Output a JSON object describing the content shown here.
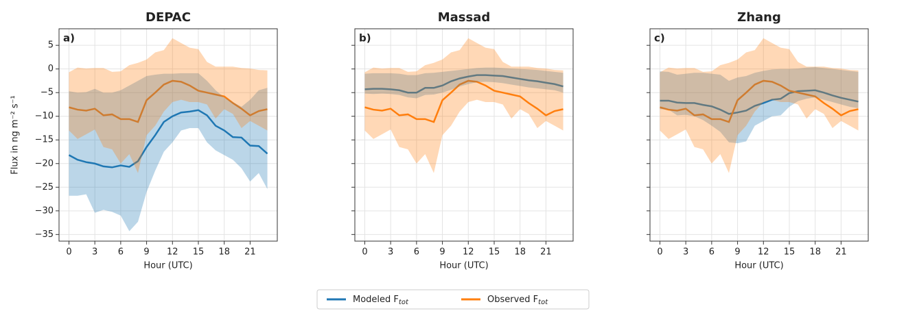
{
  "chart_data": [
    {
      "type": "line",
      "title": "DEPAC",
      "panel_label": "a)",
      "xlabel": "Hour (UTC)",
      "ylabel": "Flux in ng m⁻² s⁻¹",
      "x": [
        0,
        1,
        2,
        3,
        4,
        5,
        6,
        7,
        8,
        9,
        10,
        11,
        12,
        13,
        14,
        15,
        16,
        17,
        18,
        19,
        20,
        21,
        22,
        23
      ],
      "xlim": [
        -1.15,
        24.15
      ],
      "ylim": [
        -36.4,
        8.5
      ],
      "xticks": [
        0,
        3,
        6,
        9,
        12,
        15,
        18,
        21
      ],
      "yticks": [
        {
          "value": -35,
          "label": "−35"
        },
        {
          "value": -30,
          "label": "−30"
        },
        {
          "value": -25,
          "label": "−25"
        },
        {
          "value": -20,
          "label": "−20"
        },
        {
          "value": -15,
          "label": "−15"
        },
        {
          "value": -10,
          "label": "−10"
        },
        {
          "value": -5,
          "label": "−5"
        },
        0,
        5
      ],
      "show_ytick_labels": true,
      "grid": true,
      "series": [
        {
          "color": "#1f77b4",
          "values": [
            -18.2,
            -19.2,
            -19.7,
            -20,
            -20.6,
            -20.8,
            -20.4,
            -20.7,
            -19.5,
            -16.5,
            -14,
            -11.2,
            -10,
            -9.2,
            -9,
            -8.7,
            -9.8,
            -12,
            -13,
            -14.4,
            -14.5,
            -16.2,
            -16.3,
            -17.9
          ],
          "lower": [
            -26.8,
            -26.8,
            -26.5,
            -30.4,
            -29.8,
            -30.2,
            -31,
            -34.3,
            -32.3,
            -26,
            -21.5,
            -17.5,
            -15.5,
            -13,
            -12.5,
            -12.5,
            -15.5,
            -17.2,
            -18.2,
            -19.2,
            -21,
            -23.8,
            -22,
            -25.4
          ],
          "upper": [
            -4.7,
            -5,
            -4.9,
            -4.2,
            -5,
            -5,
            -4.5,
            -3.5,
            -2.5,
            -1.5,
            -1.2,
            -1,
            -1,
            -0.9,
            -0.9,
            -0.9,
            -2.5,
            -4.5,
            -6,
            -7,
            -8,
            -6.5,
            -4.5,
            -4
          ]
        },
        {
          "color": "#ff7f0e",
          "values": [
            -8.1,
            -8.6,
            -8.8,
            -8.4,
            -9.8,
            -9.6,
            -10.6,
            -10.6,
            -11.2,
            -6.6,
            -5,
            -3.3,
            -2.5,
            -2.7,
            -3.5,
            -4.6,
            -5,
            -5.4,
            -5.8,
            -7.2,
            -8.4,
            -9.8,
            -8.9,
            -8.5
          ],
          "lower": [
            -13,
            -14.8,
            -13.8,
            -12.8,
            -16.5,
            -17,
            -20,
            -18,
            -22,
            -14,
            -12,
            -9,
            -7,
            -6.5,
            -7,
            -7,
            -7.5,
            -10.5,
            -8.5,
            -9.5,
            -12.5,
            -11,
            -12,
            -13
          ],
          "upper": [
            -0.7,
            0.3,
            0.1,
            0.2,
            0.2,
            -0.6,
            -0.5,
            0.8,
            1.3,
            2,
            3.5,
            4,
            6.5,
            5.5,
            4.5,
            4.2,
            1.5,
            0.5,
            0.5,
            0.5,
            0.2,
            0.1,
            -0.2,
            -0.3
          ]
        }
      ]
    },
    {
      "type": "line",
      "title": "Massad",
      "panel_label": "b)",
      "xlabel": "Hour (UTC)",
      "x": [
        0,
        1,
        2,
        3,
        4,
        5,
        6,
        7,
        8,
        9,
        10,
        11,
        12,
        13,
        14,
        15,
        16,
        17,
        18,
        19,
        20,
        21,
        22,
        23
      ],
      "xlim": [
        -1.15,
        24.15
      ],
      "ylim": [
        -36.4,
        8.5
      ],
      "xticks": [
        0,
        3,
        6,
        9,
        12,
        15,
        18,
        21
      ],
      "yticks": [
        -35,
        -30,
        -25,
        -20,
        -15,
        -10,
        -5,
        0,
        5
      ],
      "show_ytick_labels": false,
      "grid": true,
      "series": [
        {
          "color": "#1f77b4",
          "values": [
            -4.3,
            -4.2,
            -4.2,
            -4.3,
            -4.5,
            -5,
            -5,
            -4,
            -4,
            -3.5,
            -2.6,
            -2,
            -1.6,
            -1.3,
            -1.3,
            -1.4,
            -1.5,
            -1.8,
            -2.1,
            -2.4,
            -2.6,
            -2.9,
            -3.2,
            -3.7
          ],
          "lower": [
            -5.2,
            -5.3,
            -5.2,
            -5.3,
            -5.5,
            -6,
            -6.2,
            -5.5,
            -5.4,
            -5,
            -4.4,
            -3.7,
            -3.2,
            -2.8,
            -2.7,
            -2.8,
            -3,
            -3.3,
            -3.6,
            -3.9,
            -4.1,
            -4.3,
            -4.5,
            -5
          ],
          "upper": [
            -1,
            -0.9,
            -0.9,
            -0.9,
            -1,
            -1.3,
            -1.3,
            -0.9,
            -0.8,
            -0.6,
            -0.4,
            -0.2,
            0,
            0.2,
            0.3,
            0.3,
            0.2,
            0.1,
            0,
            -0.1,
            -0.2,
            -0.4,
            -0.6,
            -0.8
          ]
        },
        {
          "color": "#ff7f0e",
          "values": [
            -8.1,
            -8.6,
            -8.8,
            -8.4,
            -9.8,
            -9.6,
            -10.6,
            -10.6,
            -11.2,
            -6.6,
            -5,
            -3.3,
            -2.5,
            -2.7,
            -3.5,
            -4.6,
            -5,
            -5.4,
            -5.8,
            -7.2,
            -8.4,
            -9.8,
            -8.9,
            -8.5
          ],
          "lower": [
            -13,
            -14.8,
            -13.8,
            -12.8,
            -16.5,
            -17,
            -20,
            -18,
            -22,
            -14,
            -12,
            -9,
            -7,
            -6.5,
            -7,
            -7,
            -7.5,
            -10.5,
            -8.5,
            -9.5,
            -12.5,
            -11,
            -12,
            -13
          ],
          "upper": [
            -0.7,
            0.3,
            0.1,
            0.2,
            0.2,
            -0.6,
            -0.5,
            0.8,
            1.3,
            2,
            3.5,
            4,
            6.5,
            5.5,
            4.5,
            4.2,
            1.5,
            0.5,
            0.5,
            0.5,
            0.2,
            0.1,
            -0.2,
            -0.3
          ]
        }
      ]
    },
    {
      "type": "line",
      "title": "Zhang",
      "panel_label": "c)",
      "xlabel": "Hour (UTC)",
      "x": [
        0,
        1,
        2,
        3,
        4,
        5,
        6,
        7,
        8,
        9,
        10,
        11,
        12,
        13,
        14,
        15,
        16,
        17,
        18,
        19,
        20,
        21,
        22,
        23
      ],
      "xlim": [
        -1.15,
        24.15
      ],
      "ylim": [
        -36.4,
        8.5
      ],
      "xticks": [
        0,
        3,
        6,
        9,
        12,
        15,
        18,
        21
      ],
      "yticks": [
        -35,
        -30,
        -25,
        -20,
        -15,
        -10,
        -5,
        0,
        5
      ],
      "show_ytick_labels": false,
      "grid": true,
      "series": [
        {
          "color": "#1f77b4",
          "values": [
            -6.7,
            -6.7,
            -7.1,
            -7.2,
            -7.2,
            -7.6,
            -7.9,
            -8.6,
            -9.5,
            -9.2,
            -8.8,
            -7.8,
            -7.2,
            -6.5,
            -6.3,
            -5.1,
            -4.7,
            -4.6,
            -4.5,
            -5,
            -5.6,
            -6.1,
            -6.5,
            -6.9
          ],
          "lower": [
            -8.5,
            -8.6,
            -9.8,
            -9.7,
            -10,
            -10.8,
            -12,
            -13.3,
            -15.5,
            -15.7,
            -15.3,
            -12,
            -11,
            -10,
            -9.8,
            -8,
            -6.8,
            -6.3,
            -6,
            -6.5,
            -7,
            -7.5,
            -8,
            -8.3
          ],
          "upper": [
            -0.5,
            -0.6,
            -1.2,
            -1,
            -0.8,
            -0.8,
            -1,
            -1.2,
            -2.5,
            -1.8,
            -1.5,
            -0.8,
            -0.4,
            -0.1,
            0,
            0,
            0.1,
            0.3,
            0.4,
            0.2,
            0,
            -0.2,
            -0.4,
            -0.6
          ]
        },
        {
          "color": "#ff7f0e",
          "values": [
            -8.1,
            -8.6,
            -8.8,
            -8.4,
            -9.8,
            -9.6,
            -10.6,
            -10.6,
            -11.2,
            -6.6,
            -5,
            -3.3,
            -2.5,
            -2.7,
            -3.5,
            -4.6,
            -5,
            -5.4,
            -5.8,
            -7.2,
            -8.4,
            -9.8,
            -8.9,
            -8.5
          ],
          "lower": [
            -13,
            -14.8,
            -13.8,
            -12.8,
            -16.5,
            -17,
            -20,
            -18,
            -22,
            -14,
            -12,
            -9,
            -7,
            -6.5,
            -7,
            -7,
            -7.5,
            -10.5,
            -8.5,
            -9.5,
            -12.5,
            -11,
            -12,
            -13
          ],
          "upper": [
            -0.7,
            0.3,
            0.1,
            0.2,
            0.2,
            -0.6,
            -0.5,
            0.8,
            1.3,
            2,
            3.5,
            4,
            6.5,
            5.5,
            4.5,
            4.2,
            1.5,
            0.5,
            0.5,
            0.5,
            0.2,
            0.1,
            -0.2,
            -0.3
          ]
        }
      ]
    }
  ],
  "legend": [
    {
      "label": "Modeled F",
      "subscript": "tot"
    },
    {
      "label": "Observed F",
      "subscript": "tot"
    }
  ]
}
